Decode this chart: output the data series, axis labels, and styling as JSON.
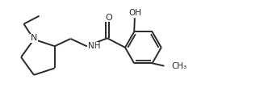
{
  "bg_color": "#ffffff",
  "line_color": "#2a2a2a",
  "line_width": 1.4,
  "font_size": 7.5,
  "fig_width": 3.32,
  "fig_height": 1.35,
  "dpi": 100,
  "xlim": [
    0,
    10
  ],
  "ylim": [
    0,
    4.0
  ]
}
